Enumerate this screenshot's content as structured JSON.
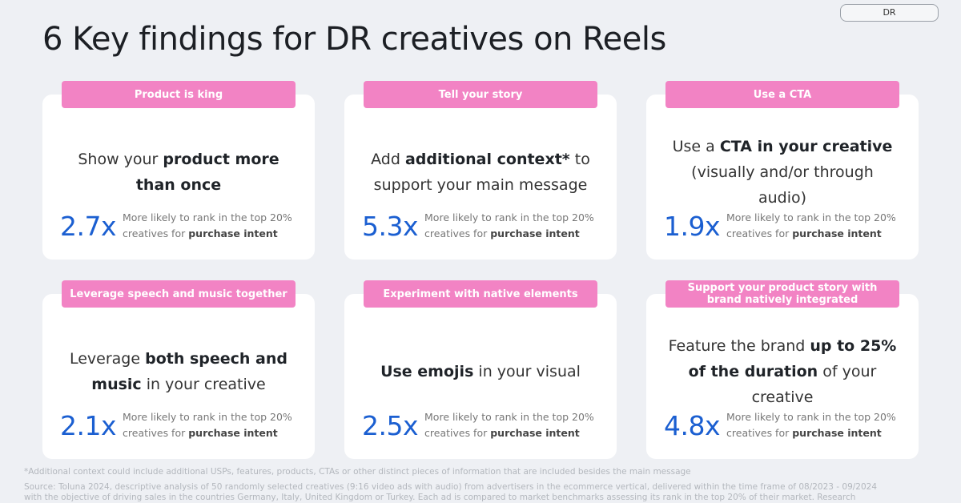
{
  "badge": "DR",
  "title": "6 Key findings for DR creatives on Reels",
  "stat_desc": {
    "line1": "More likely to rank in the top 20%",
    "line2a": "creatives for ",
    "line2b": "purchase intent"
  },
  "cards": [
    {
      "tag": "Product is king",
      "h": [
        "Show your ",
        "product more than once",
        ""
      ],
      "value": "2.7x"
    },
    {
      "tag": "Tell your story",
      "h": [
        "Add ",
        "additional context*",
        " to support your main message"
      ],
      "value": "5.3x"
    },
    {
      "tag": "Use a CTA",
      "h": [
        "Use a ",
        "CTA in your creative",
        " (visually and/or through audio)"
      ],
      "value": "1.9x"
    },
    {
      "tag": "Leverage speech and music together",
      "h": [
        "Leverage ",
        "both speech and music",
        " in your creative"
      ],
      "value": "2.1x"
    },
    {
      "tag": "Experiment with native elements",
      "h": [
        "",
        "Use emojis",
        " in your visual"
      ],
      "value": "2.5x"
    },
    {
      "tag": "Support your product story with brand natively integrated",
      "h": [
        "Feature the brand ",
        "up to 25% of the duration",
        " of your creative"
      ],
      "value": "4.8x"
    }
  ],
  "footnote": "*Additional context could include additional USPs, features, products, CTAs or other distinct pieces of information that are included besides the main message",
  "source1": "Source: Toluna 2024, descriptive analysis of 50 randomly selected creatives (9:16 video ads with audio)  from advertisers in the ecommerce vertical, delivered within the time frame of 08/2023 - 09/2024",
  "source2": "with the objective of driving sales in the countries Germany, Italy, United Kingdom or Turkey. Each ad is compared to market benchmarks assessing its rank in the top 20% of their market. Research"
}
